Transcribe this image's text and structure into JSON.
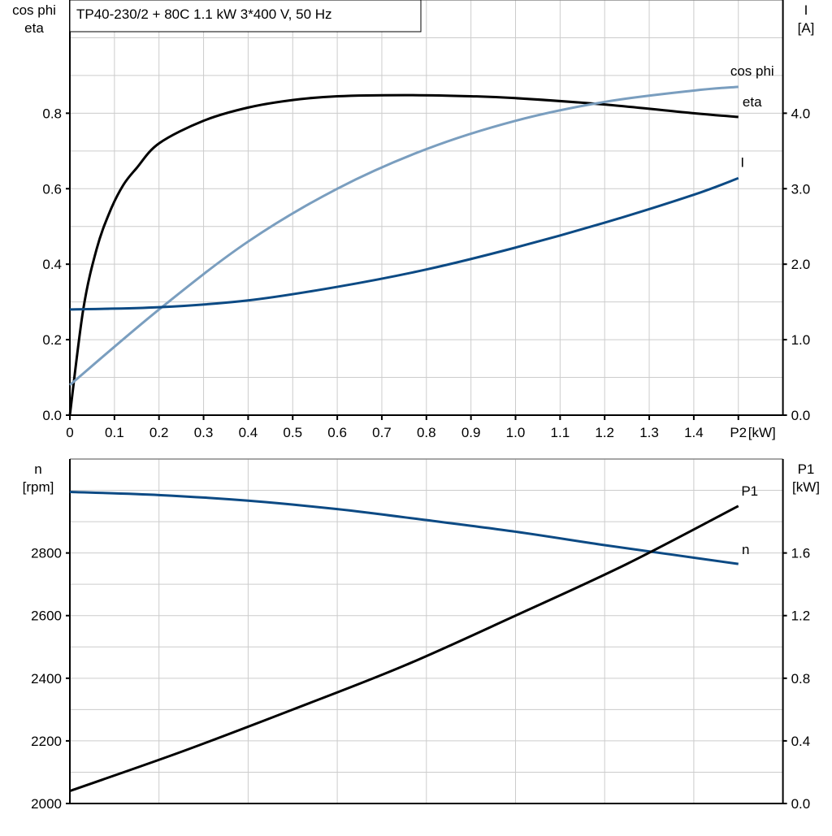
{
  "title": "TP40-230/2 + 80C   1.1 kW   3*400 V, 50 Hz",
  "chart_data": [
    {
      "type": "line",
      "xlabel": "[kW]",
      "x_ticks": [
        "0",
        "0.1",
        "0.2",
        "0.3",
        "0.4",
        "0.5",
        "0.6",
        "0.7",
        "0.8",
        "0.9",
        "1.0",
        "1.1",
        "1.2",
        "1.3",
        "1.4",
        "P2"
      ],
      "xlim": [
        0,
        1.6
      ],
      "grid": true,
      "left_axis": {
        "label_line1": "cos phi",
        "label_line2": "eta",
        "ylim": [
          0,
          1.1
        ],
        "ticks": [
          "0.0",
          "0.2",
          "0.4",
          "0.6",
          "0.8"
        ]
      },
      "right_axis": {
        "label_line1": "I",
        "label_line2": "[A]",
        "ylim": [
          0,
          5.5
        ],
        "ticks": [
          "0.0",
          "1.0",
          "2.0",
          "3.0",
          "4.0"
        ]
      },
      "series": [
        {
          "name": "eta",
          "axis": "left",
          "color": "#000000",
          "x": [
            0,
            0.03,
            0.06,
            0.09,
            0.12,
            0.15,
            0.2,
            0.3,
            0.4,
            0.5,
            0.6,
            0.75,
            0.9,
            1.0,
            1.2,
            1.4,
            1.5
          ],
          "y": [
            0,
            0.28,
            0.44,
            0.54,
            0.61,
            0.655,
            0.72,
            0.78,
            0.815,
            0.835,
            0.845,
            0.848,
            0.845,
            0.84,
            0.823,
            0.8,
            0.79
          ]
        },
        {
          "name": "cos phi",
          "axis": "left",
          "color": "#7a9ebf",
          "x": [
            0,
            0.2,
            0.4,
            0.6,
            0.8,
            1.0,
            1.2,
            1.4,
            1.5
          ],
          "y": [
            0.08,
            0.28,
            0.46,
            0.6,
            0.705,
            0.78,
            0.83,
            0.86,
            0.87
          ]
        },
        {
          "name": "I",
          "axis": "right",
          "color": "#0c4a84",
          "x": [
            0,
            0.2,
            0.4,
            0.6,
            0.8,
            1.0,
            1.2,
            1.4,
            1.5
          ],
          "y": [
            1.4,
            1.43,
            1.52,
            1.7,
            1.93,
            2.22,
            2.55,
            2.92,
            3.14
          ]
        }
      ]
    },
    {
      "type": "line",
      "xlim": [
        0,
        1.6
      ],
      "grid": true,
      "left_axis": {
        "label_line1": "n",
        "label_line2": "[rpm]",
        "ylim": [
          2000,
          3100
        ],
        "ticks": [
          "2000",
          "2200",
          "2400",
          "2600",
          "2800"
        ]
      },
      "right_axis": {
        "label_line1": "P1",
        "label_line2": "[kW]",
        "ylim": [
          0,
          2.2
        ],
        "ticks": [
          "0.0",
          "0.4",
          "0.8",
          "1.2",
          "1.6"
        ]
      },
      "series": [
        {
          "name": "n",
          "axis": "left",
          "color": "#0c4a84",
          "x": [
            0,
            0.2,
            0.4,
            0.6,
            0.8,
            1.0,
            1.2,
            1.35,
            1.5
          ],
          "y": [
            2995,
            2985,
            2967,
            2940,
            2905,
            2868,
            2825,
            2795,
            2765
          ]
        },
        {
          "name": "P1",
          "axis": "right",
          "color": "#000000",
          "x": [
            0,
            0.25,
            0.5,
            0.75,
            1.0,
            1.25,
            1.5
          ],
          "y": [
            0.08,
            0.33,
            0.6,
            0.88,
            1.2,
            1.53,
            1.9
          ]
        }
      ]
    }
  ]
}
